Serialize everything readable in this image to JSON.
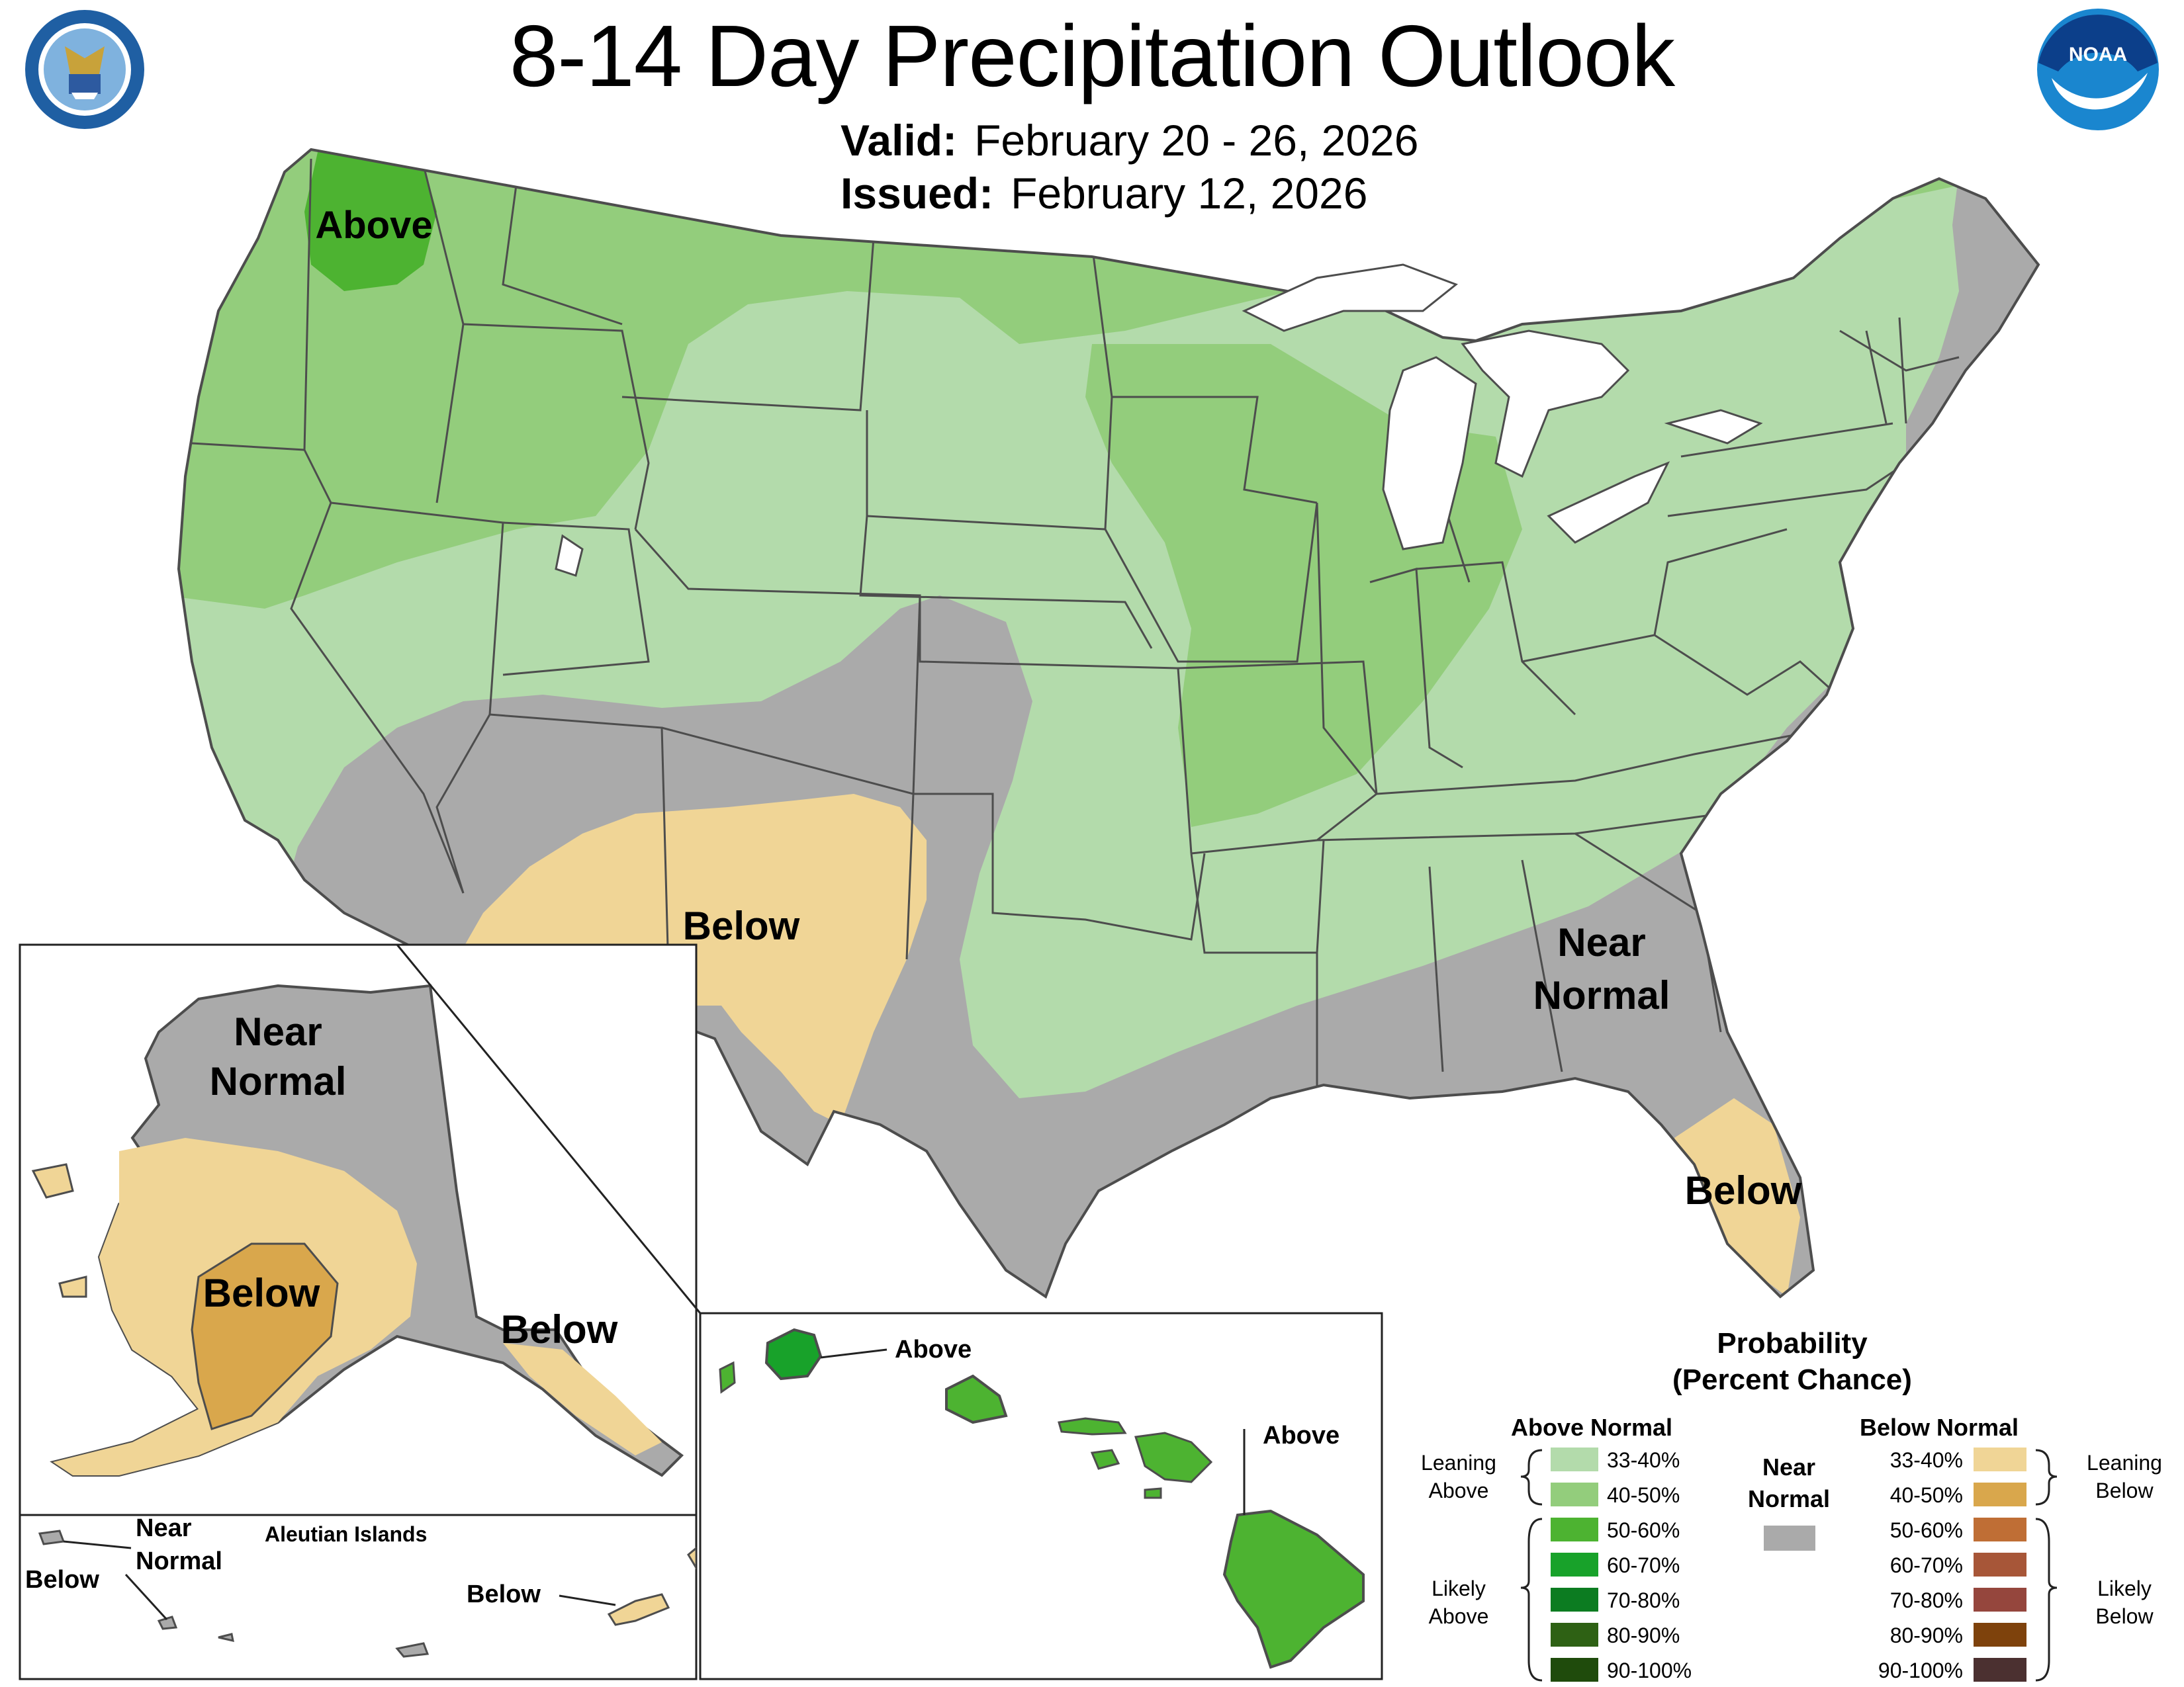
{
  "title": "8-14 Day Precipitation Outlook",
  "valid": {
    "label": "Valid:",
    "value": "February 20 - 26, 2026"
  },
  "issued": {
    "label": "Issued:",
    "value": "February 12, 2026"
  },
  "logos": {
    "commerce": "Department of Commerce seal",
    "noaa": "NOAA"
  },
  "colors": {
    "above_33_40": "#b3dbab",
    "above_40_50": "#93cd7c",
    "above_50_60": "#4db331",
    "above_60_70": "#18a22a",
    "above_70_80": "#0c7c21",
    "above_80_90": "#2e6114",
    "above_90_100": "#1f4b0c",
    "near_normal": "#aaaaaa",
    "below_33_40": "#f0d596",
    "below_40_50": "#d9a74c",
    "below_50_60": "#bf6e35",
    "below_60_70": "#a75638",
    "below_70_80": "#95463d",
    "below_80_90": "#7e420c",
    "below_90_100": "#4b3030",
    "border": "#4d4d4d",
    "lakes": "#ffffff"
  },
  "conus_labels": {
    "above_nw": "Above",
    "below_sw": "Below",
    "near_normal_se_1": "Near",
    "near_normal_se_2": "Normal",
    "below_fl": "Below"
  },
  "alaska_labels": {
    "near_normal_1": "Near",
    "near_normal_2": "Normal",
    "below_sw": "Below",
    "below_se": "Below"
  },
  "aleutians": {
    "title": "Aleutian Islands",
    "near_normal_1": "Near",
    "near_normal_2": "Normal",
    "below_west": "Below",
    "below_east": "Below"
  },
  "hawaii_labels": {
    "above_kauai": "Above",
    "above_big_island": "Above"
  },
  "legend": {
    "title_1": "Probability",
    "title_2": "(Percent Chance)",
    "above_header": "Above Normal",
    "below_header": "Below Normal",
    "near_1": "Near",
    "near_2": "Normal",
    "leaning_above_1": "Leaning",
    "leaning_above_2": "Above",
    "likely_above_1": "Likely",
    "likely_above_2": "Above",
    "leaning_below_1": "Leaning",
    "leaning_below_2": "Below",
    "likely_below_1": "Likely",
    "likely_below_2": "Below",
    "ranges": [
      "33-40%",
      "40-50%",
      "50-60%",
      "60-70%",
      "70-80%",
      "80-90%",
      "90-100%"
    ]
  }
}
